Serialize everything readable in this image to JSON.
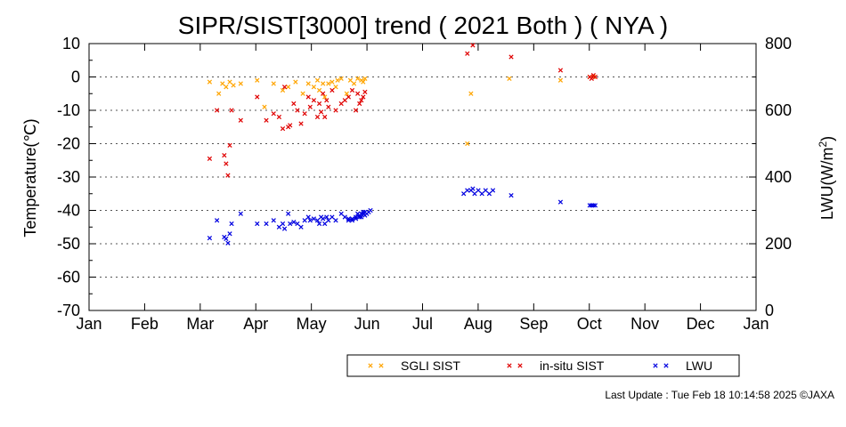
{
  "chart_data": {
    "type": "scatter",
    "title": "SIPR/SIST[3000] trend ( 2021 Both ) ( NYA )",
    "ylabel": "Temperature(℃)",
    "y2label": "LWU(W/m",
    "y2label_sup": "2",
    "y2label_end": ")",
    "ylim": [
      -70,
      10
    ],
    "y2lim": [
      0,
      800
    ],
    "yticks": [
      10,
      0,
      -10,
      -20,
      -30,
      -40,
      -50,
      -60,
      -70
    ],
    "yticklabels": [
      "10",
      "0",
      "-10",
      "-20",
      "-30",
      "-40",
      "-50",
      "-60",
      "-70"
    ],
    "y2ticks": [
      800,
      600,
      400,
      200,
      0
    ],
    "y2ticklabels": [
      "800",
      "600",
      "400",
      "200",
      "0"
    ],
    "months": [
      "Jan",
      "Feb",
      "Mar",
      "Apr",
      "May",
      "Jun",
      "Jul",
      "Aug",
      "Sep",
      "Oct",
      "Nov",
      "Dec",
      "Jan"
    ],
    "xlim_day_of_year": [
      1,
      366
    ],
    "grid": "dotted horizontal at y ticks",
    "legend_position": "bottom-center",
    "series": [
      {
        "name": "SGLI SIST",
        "axis": "left",
        "color": "#ffa500",
        "x_day_of_year": [
          67,
          72,
          74,
          76,
          78,
          80,
          84,
          93,
          97,
          102,
          107,
          110,
          114,
          118,
          121,
          124,
          126,
          127,
          129,
          130,
          132,
          134,
          136,
          137,
          139,
          142,
          144,
          146,
          148,
          150,
          151,
          152,
          208,
          210,
          231,
          259,
          275,
          277
        ],
        "y": [
          -1.5,
          -5,
          -2,
          -3,
          -1.5,
          -2.5,
          -2,
          -1,
          -9,
          -2,
          -4,
          -3,
          -1.5,
          -5,
          -2,
          -3,
          -1,
          -4,
          -2,
          -6,
          -2,
          -1.5,
          -3,
          -1,
          -0.5,
          -5,
          -1,
          -2,
          -0.5,
          -1,
          -1.5,
          -0.5,
          -20,
          -5,
          -0.5,
          -1,
          0,
          0
        ]
      },
      {
        "name": "in-situ SIST",
        "axis": "left",
        "color": "#e00000",
        "x_day_of_year": [
          67,
          71,
          75,
          76,
          77,
          78,
          79,
          84,
          93,
          98,
          102,
          105,
          107,
          108,
          110,
          111,
          113,
          115,
          117,
          119,
          121,
          122,
          124,
          126,
          127,
          128,
          129,
          130,
          131,
          132,
          134,
          136,
          139,
          141,
          143,
          145,
          147,
          148,
          149,
          150,
          151,
          152,
          208,
          211,
          232,
          259,
          275,
          276,
          277,
          278
        ],
        "y": [
          -24.5,
          -10,
          -23.5,
          -26,
          -29.5,
          -20.5,
          -10,
          -13,
          -6,
          -13,
          -11,
          -12,
          -15.5,
          -3,
          -15,
          -14.5,
          -8,
          -10,
          -14,
          -11,
          -6,
          -9,
          -7,
          -12,
          -8,
          -10.5,
          -5,
          -12,
          -7,
          -9,
          -4,
          -10,
          -8,
          -7,
          -6,
          -4,
          -10,
          -5,
          -8,
          -7,
          -6,
          -4.5,
          7,
          9.5,
          6,
          2,
          0,
          -0.5,
          0.5,
          0
        ]
      },
      {
        "name": "LWU",
        "axis": "right",
        "lwu_wm2": [
          217,
          230,
          220,
          214,
          209,
          209,
          210,
          226,
          239,
          243,
          233,
          237,
          241,
          235,
          231,
          239,
          231,
          233,
          229,
          240,
          253,
          247,
          251,
          247,
          245,
          231,
          253,
          246,
          248,
          247,
          256,
          251,
          252,
          248,
          256,
          255,
          250,
          249,
          256,
          251,
          252,
          259,
          265,
          260,
          264,
          258,
          262,
          262,
          266,
          270,
          266,
          274,
          272,
          271,
          274,
          272,
          270,
          277,
          276,
          278,
          350,
          359,
          343,
          386,
          388,
          345,
          332,
          340
        ],
        "color": "#0000e0",
        "x_day_of_year": [
          67,
          71,
          75,
          76,
          77,
          78,
          79,
          84,
          93,
          98,
          102,
          105,
          107,
          108,
          110,
          111,
          113,
          115,
          117,
          119,
          121,
          122,
          124,
          126,
          127,
          128,
          129,
          130,
          131,
          132,
          134,
          136,
          139,
          141,
          143,
          145,
          147,
          148,
          149,
          150,
          151,
          152,
          210,
          211,
          232,
          259,
          275,
          276,
          277,
          278,
          143,
          145,
          147,
          149,
          150,
          151,
          152,
          153,
          154,
          155,
          206,
          208,
          212,
          214,
          216,
          218,
          220,
          222
        ],
        "y": [
          -48.3,
          -43,
          -48,
          -48.5,
          -49.8,
          -47,
          -44,
          -41,
          -44,
          -44,
          -43,
          -45,
          -44,
          -45.5,
          -41,
          -44,
          -43.5,
          -44,
          -45,
          -43,
          -42,
          -43,
          -42.5,
          -43,
          -44,
          -42,
          -42.5,
          -44,
          -42,
          -43,
          -42,
          -43,
          -41,
          -42,
          -43,
          -42.5,
          -42,
          -41,
          -42,
          -41,
          -40.5,
          -40.5,
          -34,
          -33.5,
          -35.5,
          -37.5,
          -38.5,
          -38.5,
          -38.5,
          -38.5,
          -42.5,
          -43,
          -42.5,
          -41.5,
          -42,
          -41,
          -41.5,
          -41,
          -40.5,
          -40,
          -35,
          -34,
          -35,
          -34,
          -35,
          -34,
          -35,
          -34
        ]
      }
    ]
  },
  "legend": {
    "sgli_label": "SGLI SIST",
    "insitu_label": "in-situ SIST",
    "lwu_label": "LWU"
  },
  "footer": {
    "last_update": "Last Update : Tue Feb 18 10:14:58 2025  ©JAXA"
  }
}
